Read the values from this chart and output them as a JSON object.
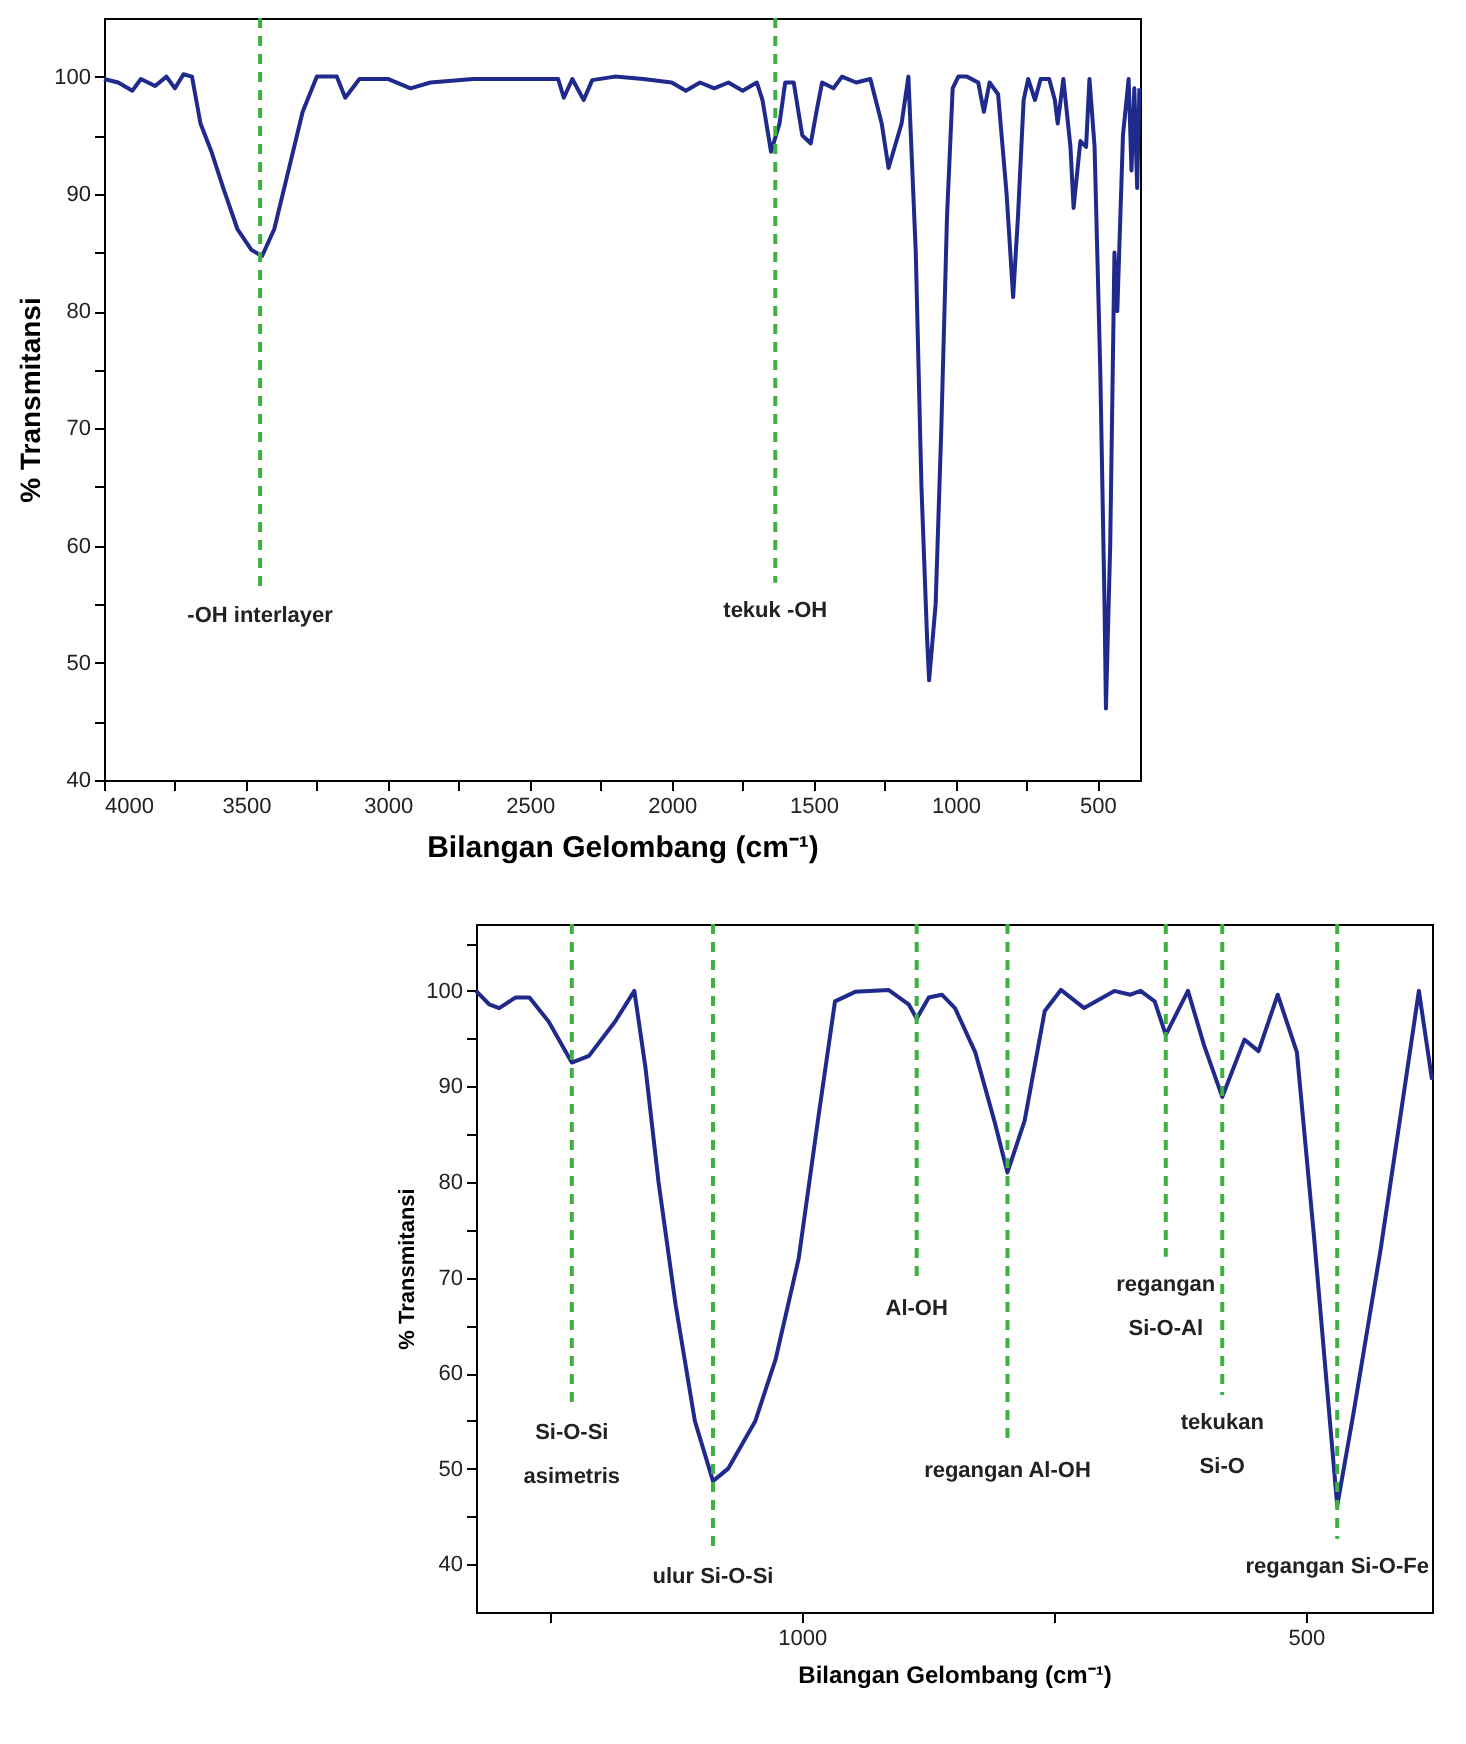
{
  "chart_data": [
    {
      "type": "line",
      "xlabel": "Bilangan Gelombang (cm⁻¹)",
      "ylabel": "% Transmitansi",
      "grid": false,
      "marker": "none",
      "line_style": "solid",
      "xlim": [
        4000,
        350
      ],
      "ylim": [
        40,
        105
      ],
      "xticks": [
        4000,
        {
          "value": 3750,
          "label": null
        },
        3500,
        {
          "value": 3250,
          "label": null
        },
        3000,
        {
          "value": 2750,
          "label": null
        },
        2500,
        {
          "value": 2250,
          "label": null
        },
        2000,
        {
          "value": 1750,
          "label": null
        },
        1500,
        {
          "value": 1250,
          "label": null
        },
        1000,
        {
          "value": 750,
          "label": null
        },
        500
      ],
      "yticks": [
        40,
        {
          "value": 45,
          "label": null
        },
        50,
        {
          "value": 55,
          "label": null
        },
        60,
        {
          "value": 65,
          "label": null
        },
        70,
        {
          "value": 75,
          "label": null
        },
        80,
        {
          "value": 85,
          "label": null
        },
        90,
        {
          "value": 95,
          "label": null
        },
        100
      ],
      "series": [
        {
          "color": "#202a8c",
          "x": [
            4000,
            3950,
            3900,
            3870,
            3820,
            3780,
            3750,
            3720,
            3690,
            3660,
            3620,
            3580,
            3530,
            3480,
            3443,
            3400,
            3350,
            3300,
            3250,
            3180,
            3150,
            3100,
            3000,
            2920,
            2850,
            2700,
            2400,
            2380,
            2350,
            2310,
            2280,
            2200,
            2100,
            2000,
            1950,
            1900,
            1850,
            1800,
            1750,
            1700,
            1680,
            1650,
            1620,
            1600,
            1570,
            1540,
            1510,
            1490,
            1470,
            1430,
            1400,
            1350,
            1300,
            1260,
            1236,
            1190,
            1166,
            1140,
            1120,
            1100,
            1093,
            1070,
            1050,
            1030,
            1010,
            990,
            960,
            920,
            900,
            880,
            850,
            820,
            797,
            780,
            760,
            744,
            720,
            700,
            670,
            650,
            640,
            620,
            595,
            584,
            560,
            540,
            528,
            510,
            490,
            475,
            470,
            455,
            440,
            430,
            410,
            390,
            380,
            370,
            360,
            352
          ],
          "values": [
            99.8,
            99.5,
            98.8,
            99.8,
            99.2,
            100,
            99,
            100.2,
            100,
            96,
            93.5,
            90.5,
            87,
            85.2,
            84.7,
            87,
            92,
            97,
            100,
            100,
            98.2,
            99.8,
            99.8,
            99,
            99.5,
            99.8,
            99.8,
            98.2,
            99.8,
            98,
            99.7,
            100,
            99.8,
            99.5,
            98.8,
            99.5,
            99,
            99.5,
            98.8,
            99.5,
            98,
            93.6,
            96,
            99.5,
            99.5,
            95,
            94.3,
            97,
            99.5,
            99,
            100,
            99.5,
            99.8,
            96,
            92.2,
            96,
            100,
            85,
            65,
            52,
            48.5,
            55,
            70,
            88,
            99,
            100,
            100,
            99.5,
            97,
            99.5,
            98.5,
            90,
            81.2,
            88,
            98,
            99.8,
            98,
            99.8,
            99.8,
            98,
            96,
            99.8,
            94,
            88.8,
            94.5,
            94,
            99.8,
            94,
            75,
            55,
            46.1,
            60,
            85,
            80,
            95,
            99.8,
            92,
            99,
            90.5,
            99
          ]
        }
      ],
      "ref_lines": [
        {
          "axis": "x",
          "value": 3450,
          "color": "#3cb043",
          "line_style": "dashed",
          "label": "-OH interlayer"
        },
        {
          "axis": "x",
          "value": 1635,
          "color": "#3cb043",
          "line_style": "dashed",
          "label": "tekuk -OH"
        }
      ]
    },
    {
      "type": "line",
      "xlabel": "Bilangan Gelombang (cm⁻¹)",
      "ylabel": "% Transmitansi",
      "grid": false,
      "marker": "none",
      "line_style": "solid",
      "xlim": [
        1323,
        375
      ],
      "ylim": [
        35,
        107
      ],
      "xticks": [
        {
          "value": 1250,
          "label": null
        },
        1000,
        {
          "value": 750,
          "label": null
        },
        500
      ],
      "yticks": [
        40,
        {
          "value": 45,
          "label": null
        },
        50,
        {
          "value": 55,
          "label": null
        },
        60,
        {
          "value": 65,
          "label": null
        },
        70,
        {
          "value": 75,
          "label": null
        },
        80,
        {
          "value": 85,
          "label": null
        },
        90,
        {
          "value": 95,
          "label": null
        },
        100,
        {
          "value": 105,
          "label": null
        }
      ],
      "series": [
        {
          "color": "#202a8c",
          "x": [
            1323,
            1310,
            1300,
            1284,
            1270,
            1251,
            1228,
            1211,
            1185,
            1166,
            1155,
            1142,
            1125,
            1106,
            1088,
            1073,
            1046,
            1026,
            1003,
            984,
            967,
            947,
            914,
            894,
            886,
            874,
            861,
            848,
            828,
            809,
            796,
            779,
            759,
            743,
            720,
            690,
            674,
            664,
            650,
            639,
            617,
            601,
            583,
            561,
            547,
            528,
            509,
            492,
            469,
            453,
            426,
            406,
            388,
            375
          ],
          "values": [
            100,
            98.6,
            98.2,
            99.3,
            99.3,
            96.8,
            92.5,
            93.2,
            96.8,
            100,
            92,
            80,
            67.1,
            55,
            48.7,
            50,
            55,
            61.4,
            72,
            86.4,
            98.9,
            99.9,
            100.1,
            98.6,
            97.1,
            99.3,
            99.6,
            98.2,
            93.6,
            86.4,
            81,
            86.4,
            97.9,
            100.1,
            98.2,
            100,
            99.6,
            100,
            98.9,
            95.4,
            100,
            94.3,
            88.9,
            94.9,
            93.7,
            99.6,
            93.6,
            74.3,
            46.1,
            55.7,
            72.9,
            87.1,
            100,
            90.7
          ]
        }
      ],
      "ref_lines": [
        {
          "axis": "x",
          "value": 1228,
          "color": "#3cb043",
          "line_style": "dashed",
          "label": "Si-O-Si\nasimetris"
        },
        {
          "axis": "x",
          "value": 1088,
          "color": "#3cb043",
          "line_style": "dashed",
          "label": "ulur Si-O-Si"
        },
        {
          "axis": "x",
          "value": 886,
          "color": "#3cb043",
          "line_style": "dashed",
          "label": "Al-OH"
        },
        {
          "axis": "x",
          "value": 796,
          "color": "#3cb043",
          "line_style": "dashed",
          "label": "regangan Al-OH"
        },
        {
          "axis": "x",
          "value": 639,
          "color": "#3cb043",
          "line_style": "dashed",
          "label": "regangan\nSi-O-Al"
        },
        {
          "axis": "x",
          "value": 583,
          "color": "#3cb043",
          "line_style": "dashed",
          "label": "tekukan\nSi-O"
        },
        {
          "axis": "x",
          "value": 469,
          "color": "#3cb043",
          "line_style": "dashed",
          "label": "regangan Si-O-Fe"
        }
      ]
    }
  ]
}
